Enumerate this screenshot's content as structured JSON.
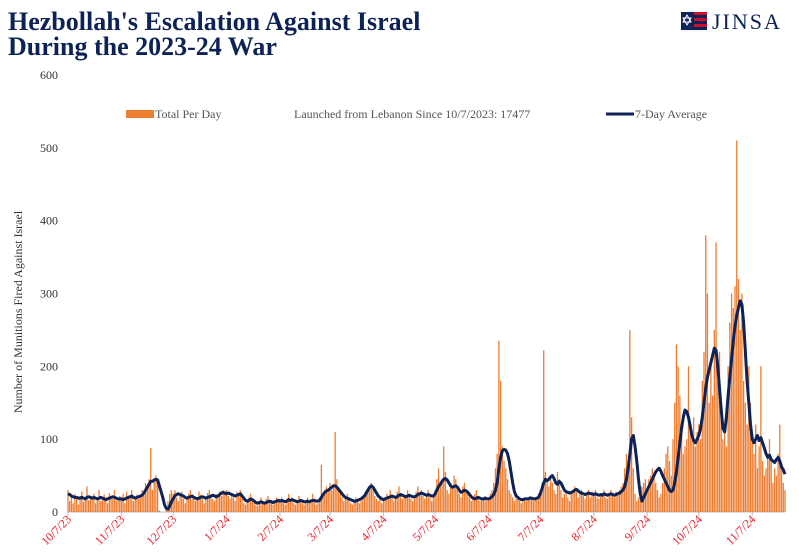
{
  "logo": "JINSA",
  "chart_data": {
    "type": "bar_line",
    "title": "Hezbollah's Escalation Against Israel During the 2023-24 War",
    "ylabel": "Number of Munitions Fired  Against Israel",
    "annotation": "Launched from Lebanon Since 10/7/2023: 17477",
    "xlim": [
      0,
      416
    ],
    "xticks": [
      {
        "value": 0,
        "label": "10/7/23"
      },
      {
        "value": 31,
        "label": "11/7/23"
      },
      {
        "value": 61,
        "label": "12/7/23"
      },
      {
        "value": 92,
        "label": "1/7/24"
      },
      {
        "value": 123,
        "label": "2/7/24"
      },
      {
        "value": 152,
        "label": "3/7/24"
      },
      {
        "value": 183,
        "label": "4/7/24"
      },
      {
        "value": 213,
        "label": "5/7/24"
      },
      {
        "value": 244,
        "label": "6/7/24"
      },
      {
        "value": 274,
        "label": "7/7/24"
      },
      {
        "value": 305,
        "label": "8/7/24"
      },
      {
        "value": 336,
        "label": "9/7/24"
      },
      {
        "value": 366,
        "label": "10/7/24"
      },
      {
        "value": 397,
        "label": "11/7/24"
      }
    ],
    "ylim": [
      0,
      600
    ],
    "yticks": [
      0,
      100,
      200,
      300,
      400,
      500,
      600
    ],
    "grid": false,
    "series": [
      {
        "name": "Total Per Day",
        "color": "#ed7d31",
        "kind": "bar",
        "values": [
          30,
          15,
          20,
          12,
          25,
          18,
          10,
          22,
          28,
          14,
          20,
          35,
          16,
          22,
          18,
          25,
          12,
          20,
          30,
          15,
          18,
          24,
          20,
          12,
          26,
          22,
          18,
          30,
          15,
          20,
          22,
          20,
          25,
          12,
          28,
          18,
          22,
          30,
          15,
          20,
          24,
          18,
          22,
          30,
          26,
          40,
          35,
          45,
          88,
          30,
          45,
          50,
          40,
          2,
          0,
          0,
          0,
          5,
          15,
          25,
          30,
          25,
          30,
          20,
          15,
          22,
          28,
          18,
          12,
          20,
          25,
          30,
          18,
          22,
          15,
          20,
          28,
          24,
          18,
          12,
          20,
          26,
          30,
          22,
          18,
          15,
          25,
          20,
          28,
          22,
          30,
          25,
          30,
          22,
          18,
          25,
          20,
          15,
          28,
          22,
          30,
          18,
          12,
          10,
          15,
          20,
          25,
          18,
          12,
          10,
          8,
          15,
          20,
          12,
          10,
          18,
          22,
          15,
          12,
          10,
          15,
          20,
          18,
          15,
          20,
          12,
          10,
          18,
          25,
          15,
          20,
          12,
          10,
          15,
          22,
          18,
          12,
          10,
          15,
          20,
          12,
          18,
          25,
          15,
          10,
          12,
          20,
          65,
          25,
          30,
          35,
          28,
          40,
          30,
          35,
          110,
          45,
          30,
          25,
          20,
          15,
          20,
          25,
          18,
          12,
          10,
          15,
          20,
          18,
          12,
          15,
          20,
          25,
          30,
          28,
          35,
          40,
          30,
          22,
          18,
          15,
          20,
          12,
          15,
          20,
          25,
          18,
          30,
          22,
          15,
          20,
          28,
          35,
          25,
          18,
          20,
          22,
          30,
          25,
          18,
          15,
          20,
          28,
          35,
          25,
          30,
          22,
          18,
          25,
          30,
          20,
          15,
          22,
          30,
          45,
          60,
          35,
          40,
          90,
          55,
          30,
          25,
          40,
          35,
          50,
          45,
          30,
          25,
          20,
          35,
          40,
          30,
          25,
          20,
          15,
          18,
          25,
          30,
          20,
          15,
          18,
          20,
          22,
          15,
          20,
          25,
          30,
          40,
          60,
          80,
          235,
          180,
          90,
          70,
          60,
          45,
          30,
          25,
          20,
          15,
          18,
          20,
          15,
          12,
          18,
          20,
          15,
          18,
          22,
          20,
          15,
          18,
          20,
          25,
          30,
          40,
          222,
          55,
          45,
          35,
          50,
          40,
          30,
          25,
          55,
          45,
          30,
          20,
          25,
          30,
          20,
          15,
          25,
          30,
          35,
          28,
          20,
          25,
          30,
          22,
          18,
          25,
          30,
          20,
          28,
          25,
          30,
          20,
          18,
          25,
          22,
          30,
          20,
          18,
          25,
          30,
          22,
          20,
          28,
          25,
          30,
          35,
          40,
          60,
          80,
          70,
          250,
          130,
          60,
          25,
          15,
          20,
          30,
          35,
          40,
          45,
          30,
          45,
          50,
          60,
          55,
          40,
          30,
          20,
          25,
          40,
          60,
          80,
          90,
          70,
          50,
          100,
          150,
          230,
          200,
          160,
          120,
          80,
          90,
          100,
          200,
          120,
          100,
          130,
          90,
          110,
          120,
          100,
          180,
          220,
          380,
          300,
          150,
          200,
          160,
          250,
          370,
          180,
          220,
          150,
          100,
          120,
          90,
          200,
          260,
          300,
          280,
          310,
          510,
          320,
          250,
          300,
          180,
          150,
          120,
          200,
          150,
          100,
          80,
          120,
          60,
          90,
          200,
          70,
          50,
          60,
          80,
          100,
          70,
          40,
          60,
          50,
          80,
          120,
          60,
          40,
          30
        ]
      },
      {
        "name": "7-Day Average",
        "color": "#0d2256",
        "kind": "line",
        "values": [
          25,
          24,
          22,
          21,
          20,
          20,
          19,
          19,
          20,
          19,
          18,
          20,
          21,
          20,
          19,
          20,
          19,
          18,
          19,
          20,
          19,
          18,
          17,
          18,
          19,
          20,
          21,
          20,
          19,
          18,
          18,
          18,
          17,
          18,
          19,
          20,
          21,
          22,
          20,
          19,
          20,
          21,
          22,
          23,
          26,
          30,
          34,
          38,
          42,
          42,
          44,
          45,
          44,
          36,
          28,
          20,
          10,
          5,
          4,
          8,
          14,
          18,
          22,
          24,
          25,
          24,
          23,
          22,
          20,
          19,
          20,
          21,
          22,
          20,
          19,
          18,
          19,
          20,
          21,
          20,
          19,
          20,
          21,
          22,
          23,
          22,
          21,
          22,
          24,
          26,
          27,
          26,
          25,
          26,
          25,
          24,
          23,
          22,
          23,
          24,
          25,
          22,
          19,
          16,
          15,
          16,
          18,
          17,
          15,
          13,
          12,
          13,
          14,
          13,
          12,
          13,
          14,
          15,
          14,
          13,
          14,
          15,
          16,
          15,
          16,
          15,
          14,
          15,
          17,
          16,
          17,
          16,
          15,
          14,
          15,
          16,
          15,
          14,
          14,
          15,
          14,
          15,
          16,
          16,
          15,
          15,
          16,
          20,
          24,
          27,
          29,
          30,
          32,
          34,
          36,
          36,
          34,
          31,
          28,
          25,
          22,
          20,
          19,
          18,
          17,
          16,
          15,
          15,
          16,
          17,
          18,
          20,
          22,
          26,
          30,
          34,
          36,
          34,
          30,
          26,
          22,
          20,
          18,
          17,
          18,
          19,
          20,
          21,
          22,
          21,
          20,
          21,
          23,
          24,
          23,
          22,
          21,
          22,
          23,
          22,
          21,
          21,
          22,
          24,
          25,
          26,
          25,
          24,
          23,
          24,
          23,
          22,
          22,
          25,
          30,
          35,
          38,
          42,
          45,
          46,
          44,
          40,
          36,
          34,
          35,
          36,
          34,
          30,
          27,
          28,
          30,
          29,
          27,
          24,
          21,
          19,
          18,
          19,
          20,
          19,
          18,
          18,
          19,
          18,
          18,
          19,
          21,
          24,
          30,
          40,
          60,
          75,
          84,
          86,
          85,
          80,
          70,
          55,
          40,
          28,
          22,
          20,
          18,
          17,
          17,
          18,
          18,
          18,
          19,
          19,
          18,
          18,
          19,
          20,
          25,
          32,
          40,
          45,
          43,
          45,
          48,
          50,
          46,
          40,
          38,
          42,
          40,
          35,
          30,
          28,
          27,
          26,
          27,
          28,
          30,
          31,
          29,
          27,
          26,
          25,
          24,
          25,
          26,
          25,
          25,
          24,
          25,
          24,
          23,
          24,
          23,
          25,
          24,
          23,
          24,
          25,
          24,
          23,
          24,
          25,
          26,
          28,
          30,
          35,
          45,
          60,
          80,
          100,
          105,
          90,
          70,
          45,
          25,
          15,
          20,
          25,
          30,
          35,
          40,
          45,
          50,
          55,
          58,
          60,
          56,
          50,
          45,
          40,
          35,
          30,
          28,
          30,
          40,
          55,
          75,
          95,
          115,
          130,
          140,
          138,
          130,
          118,
          105,
          98,
          95,
          100,
          105,
          115,
          130,
          150,
          170,
          185,
          195,
          205,
          215,
          225,
          222,
          200,
          170,
          140,
          115,
          110,
          130,
          160,
          185,
          210,
          235,
          255,
          270,
          280,
          290,
          285,
          260,
          220,
          180,
          150,
          120,
          100,
          95,
          100,
          105,
          98,
          102,
          95,
          88,
          80,
          75,
          78,
          72,
          70,
          68,
          72,
          75,
          70,
          62,
          58,
          52
        ]
      }
    ]
  }
}
